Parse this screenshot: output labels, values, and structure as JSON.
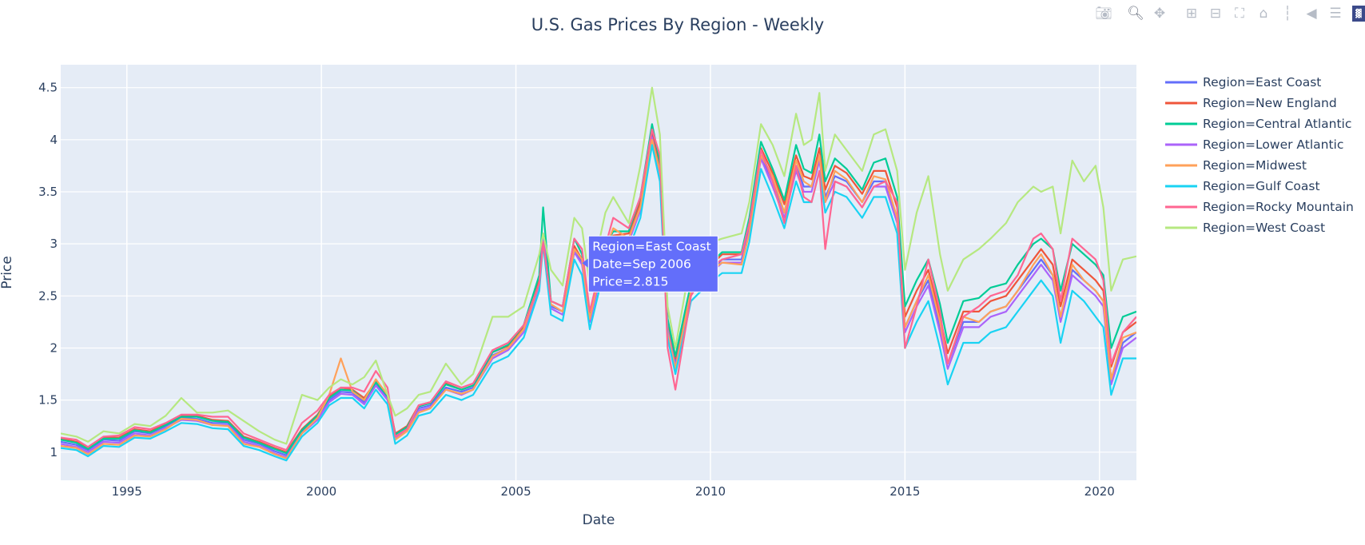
{
  "toolbar": {
    "icons": [
      "camera-icon",
      "zoom-icon",
      "pan-icon",
      "zoom-in-icon",
      "zoom-out-icon",
      "autoscale-icon",
      "home-icon",
      "spike-lines-icon",
      "hover-closest-icon",
      "hover-compare-icon",
      "plotly-logo-icon"
    ]
  },
  "chart_data": {
    "type": "line",
    "title": "U.S. Gas Prices By Region - Weekly",
    "xlabel": "Date",
    "ylabel": "Price",
    "xlim": [
      1993.3,
      2020.95
    ],
    "ylim": [
      0.73,
      4.72
    ],
    "xticks": [
      1995,
      2000,
      2005,
      2010,
      2015,
      2020
    ],
    "yticks": [
      1,
      1.5,
      2,
      2.5,
      3,
      3.5,
      4,
      4.5
    ],
    "yticklabels": [
      "1",
      "1.5",
      "2",
      "2.5",
      "3",
      "3.5",
      "4",
      "4.5"
    ],
    "grid": true,
    "legend_position": "right",
    "x": [
      1993.3,
      1993.7,
      1994.0,
      1994.4,
      1994.8,
      1995.2,
      1995.6,
      1996.0,
      1996.4,
      1996.8,
      1997.2,
      1997.6,
      1998.0,
      1998.4,
      1998.8,
      1999.1,
      1999.5,
      1999.9,
      2000.2,
      2000.5,
      2000.8,
      2001.1,
      2001.4,
      2001.7,
      2001.9,
      2002.2,
      2002.5,
      2002.8,
      2003.2,
      2003.6,
      2003.9,
      2004.4,
      2004.8,
      2005.2,
      2005.6,
      2005.7,
      2005.9,
      2006.2,
      2006.5,
      2006.7,
      2006.9,
      2007.3,
      2007.5,
      2007.9,
      2008.2,
      2008.5,
      2008.7,
      2008.9,
      2009.1,
      2009.5,
      2009.9,
      2010.3,
      2010.8,
      2011.0,
      2011.3,
      2011.6,
      2011.9,
      2012.2,
      2012.4,
      2012.6,
      2012.8,
      2012.95,
      2013.2,
      2013.5,
      2013.9,
      2014.2,
      2014.5,
      2014.8,
      2015.0,
      2015.3,
      2015.6,
      2015.9,
      2016.1,
      2016.5,
      2016.9,
      2017.2,
      2017.6,
      2017.9,
      2018.3,
      2018.5,
      2018.8,
      2019.0,
      2019.3,
      2019.6,
      2019.9,
      2020.1,
      2020.3,
      2020.6,
      2020.95
    ],
    "series": [
      {
        "name": "Region=East Coast",
        "color": "#636efa",
        "values": [
          1.1,
          1.07,
          1.02,
          1.12,
          1.11,
          1.2,
          1.18,
          1.25,
          1.33,
          1.32,
          1.28,
          1.28,
          1.12,
          1.08,
          1.01,
          0.97,
          1.2,
          1.33,
          1.5,
          1.58,
          1.57,
          1.48,
          1.66,
          1.52,
          1.15,
          1.22,
          1.42,
          1.45,
          1.62,
          1.58,
          1.62,
          1.93,
          2.0,
          2.18,
          2.62,
          3.05,
          2.4,
          2.35,
          2.95,
          2.82,
          2.27,
          2.9,
          3.05,
          3.05,
          3.35,
          4.05,
          3.7,
          2.2,
          1.85,
          2.55,
          2.7,
          2.85,
          2.85,
          3.15,
          3.85,
          3.6,
          3.3,
          3.75,
          3.55,
          3.55,
          3.85,
          3.45,
          3.65,
          3.6,
          3.4,
          3.6,
          3.6,
          3.25,
          2.2,
          2.45,
          2.65,
          2.2,
          1.85,
          2.25,
          2.25,
          2.35,
          2.4,
          2.55,
          2.75,
          2.85,
          2.7,
          2.3,
          2.75,
          2.65,
          2.55,
          2.45,
          1.7,
          2.05,
          2.15
        ]
      },
      {
        "name": "Region=New England",
        "color": "#ef553b",
        "values": [
          1.13,
          1.1,
          1.04,
          1.14,
          1.14,
          1.22,
          1.2,
          1.27,
          1.35,
          1.35,
          1.31,
          1.3,
          1.15,
          1.1,
          1.04,
          1.0,
          1.22,
          1.36,
          1.53,
          1.62,
          1.6,
          1.52,
          1.68,
          1.55,
          1.18,
          1.25,
          1.45,
          1.48,
          1.66,
          1.6,
          1.64,
          1.96,
          2.02,
          2.2,
          2.65,
          3.08,
          2.45,
          2.4,
          2.98,
          2.85,
          2.3,
          2.93,
          3.08,
          3.1,
          3.4,
          4.1,
          3.75,
          2.25,
          1.9,
          2.6,
          2.75,
          2.9,
          2.9,
          3.2,
          3.92,
          3.68,
          3.38,
          3.85,
          3.65,
          3.62,
          3.92,
          3.52,
          3.75,
          3.68,
          3.48,
          3.7,
          3.7,
          3.35,
          2.3,
          2.55,
          2.75,
          2.3,
          1.95,
          2.35,
          2.35,
          2.45,
          2.5,
          2.65,
          2.85,
          2.95,
          2.8,
          2.4,
          2.85,
          2.75,
          2.65,
          2.55,
          1.82,
          2.15,
          2.25
        ]
      },
      {
        "name": "Region=Central Atlantic",
        "color": "#00cc96",
        "values": [
          1.12,
          1.09,
          1.03,
          1.13,
          1.13,
          1.21,
          1.19,
          1.26,
          1.34,
          1.34,
          1.3,
          1.29,
          1.14,
          1.09,
          1.03,
          0.99,
          1.21,
          1.35,
          1.52,
          1.6,
          1.59,
          1.5,
          1.67,
          1.54,
          1.17,
          1.24,
          1.44,
          1.47,
          1.65,
          1.6,
          1.64,
          1.96,
          2.03,
          2.22,
          2.7,
          3.35,
          2.45,
          2.4,
          3.05,
          2.9,
          2.32,
          2.98,
          3.12,
          3.12,
          3.45,
          4.15,
          3.78,
          2.28,
          1.92,
          2.62,
          2.78,
          2.92,
          2.92,
          3.25,
          3.98,
          3.72,
          3.42,
          3.95,
          3.72,
          3.68,
          4.05,
          3.6,
          3.82,
          3.72,
          3.52,
          3.78,
          3.82,
          3.45,
          2.4,
          2.65,
          2.85,
          2.42,
          2.05,
          2.45,
          2.48,
          2.58,
          2.62,
          2.8,
          3.0,
          3.05,
          2.95,
          2.55,
          3.0,
          2.9,
          2.8,
          2.7,
          2.0,
          2.3,
          2.35
        ]
      },
      {
        "name": "Region=Lower Atlantic",
        "color": "#ab63fa",
        "values": [
          1.08,
          1.05,
          1.0,
          1.1,
          1.09,
          1.18,
          1.16,
          1.23,
          1.31,
          1.3,
          1.26,
          1.26,
          1.1,
          1.06,
          0.99,
          0.95,
          1.18,
          1.31,
          1.48,
          1.56,
          1.55,
          1.46,
          1.64,
          1.5,
          1.13,
          1.2,
          1.4,
          1.43,
          1.6,
          1.55,
          1.6,
          1.9,
          1.98,
          2.15,
          2.6,
          3.1,
          2.38,
          2.32,
          2.92,
          2.8,
          2.25,
          2.88,
          3.02,
          3.02,
          3.32,
          4.02,
          3.68,
          2.18,
          1.82,
          2.52,
          2.68,
          2.82,
          2.82,
          3.12,
          3.82,
          3.55,
          3.25,
          3.7,
          3.5,
          3.5,
          3.8,
          3.4,
          3.6,
          3.55,
          3.35,
          3.55,
          3.55,
          3.2,
          2.15,
          2.4,
          2.6,
          2.15,
          1.8,
          2.2,
          2.2,
          2.3,
          2.35,
          2.5,
          2.7,
          2.8,
          2.65,
          2.25,
          2.7,
          2.6,
          2.5,
          2.4,
          1.65,
          2.0,
          2.1
        ]
      },
      {
        "name": "Region=Midwest",
        "color": "#ffa15a",
        "values": [
          1.06,
          1.04,
          0.98,
          1.08,
          1.07,
          1.16,
          1.15,
          1.22,
          1.32,
          1.31,
          1.26,
          1.25,
          1.08,
          1.05,
          0.98,
          0.94,
          1.18,
          1.33,
          1.55,
          1.9,
          1.58,
          1.5,
          1.7,
          1.55,
          1.12,
          1.2,
          1.38,
          1.42,
          1.6,
          1.56,
          1.6,
          1.92,
          2.0,
          2.18,
          2.62,
          3.0,
          2.42,
          2.35,
          2.95,
          2.85,
          2.28,
          2.95,
          3.15,
          3.05,
          3.35,
          4.0,
          3.7,
          2.15,
          1.8,
          2.55,
          2.72,
          2.82,
          2.8,
          3.1,
          3.85,
          3.65,
          3.3,
          3.8,
          3.6,
          3.55,
          3.85,
          3.4,
          3.7,
          3.62,
          3.4,
          3.65,
          3.62,
          3.25,
          2.2,
          2.45,
          2.7,
          2.25,
          1.85,
          2.3,
          2.25,
          2.35,
          2.4,
          2.55,
          2.8,
          2.9,
          2.7,
          2.3,
          2.8,
          2.65,
          2.55,
          2.45,
          1.7,
          2.1,
          2.15
        ]
      },
      {
        "name": "Region=Gulf Coast",
        "color": "#19d3f3",
        "values": [
          1.04,
          1.02,
          0.96,
          1.06,
          1.05,
          1.14,
          1.13,
          1.2,
          1.28,
          1.27,
          1.23,
          1.22,
          1.06,
          1.02,
          0.96,
          0.92,
          1.15,
          1.28,
          1.45,
          1.52,
          1.52,
          1.42,
          1.6,
          1.46,
          1.08,
          1.16,
          1.35,
          1.38,
          1.55,
          1.5,
          1.55,
          1.85,
          1.92,
          2.1,
          2.55,
          3.0,
          2.32,
          2.26,
          2.85,
          2.7,
          2.18,
          2.8,
          2.95,
          2.95,
          3.25,
          3.95,
          3.6,
          2.1,
          1.75,
          2.45,
          2.6,
          2.72,
          2.72,
          3.02,
          3.72,
          3.45,
          3.15,
          3.6,
          3.4,
          3.4,
          3.7,
          3.3,
          3.5,
          3.45,
          3.25,
          3.45,
          3.45,
          3.1,
          2.0,
          2.25,
          2.45,
          2.0,
          1.65,
          2.05,
          2.05,
          2.15,
          2.2,
          2.35,
          2.55,
          2.65,
          2.5,
          2.05,
          2.55,
          2.45,
          2.3,
          2.2,
          1.55,
          1.9,
          1.9
        ]
      },
      {
        "name": "Region=Rocky Mountain",
        "color": "#ff6692",
        "values": [
          1.14,
          1.12,
          1.05,
          1.15,
          1.16,
          1.24,
          1.22,
          1.28,
          1.36,
          1.36,
          1.34,
          1.34,
          1.18,
          1.12,
          1.06,
          1.02,
          1.28,
          1.4,
          1.55,
          1.62,
          1.62,
          1.58,
          1.78,
          1.62,
          1.15,
          1.22,
          1.45,
          1.48,
          1.68,
          1.62,
          1.66,
          1.98,
          2.05,
          2.22,
          2.62,
          3.02,
          2.45,
          2.4,
          3.05,
          2.95,
          2.35,
          2.98,
          3.25,
          3.15,
          3.45,
          4.1,
          3.85,
          2.0,
          1.6,
          2.5,
          2.75,
          2.85,
          2.9,
          3.2,
          3.9,
          3.6,
          3.2,
          3.75,
          3.45,
          3.4,
          3.7,
          2.95,
          3.6,
          3.55,
          3.35,
          3.55,
          3.6,
          3.4,
          2.0,
          2.4,
          2.85,
          2.35,
          1.85,
          2.3,
          2.4,
          2.5,
          2.55,
          2.7,
          3.05,
          3.1,
          2.95,
          2.45,
          3.05,
          2.95,
          2.85,
          2.65,
          1.85,
          2.15,
          2.3
        ]
      },
      {
        "name": "Region=West Coast",
        "color": "#b6e880",
        "values": [
          1.18,
          1.15,
          1.1,
          1.2,
          1.18,
          1.27,
          1.25,
          1.35,
          1.52,
          1.38,
          1.38,
          1.4,
          1.3,
          1.2,
          1.12,
          1.08,
          1.55,
          1.5,
          1.62,
          1.7,
          1.65,
          1.72,
          1.88,
          1.55,
          1.35,
          1.42,
          1.55,
          1.58,
          1.85,
          1.65,
          1.75,
          2.3,
          2.3,
          2.4,
          2.9,
          3.1,
          2.75,
          2.6,
          3.25,
          3.15,
          2.6,
          3.3,
          3.45,
          3.2,
          3.75,
          4.5,
          4.05,
          2.4,
          2.0,
          2.85,
          3.0,
          3.05,
          3.1,
          3.4,
          4.15,
          3.95,
          3.65,
          4.25,
          3.95,
          4.0,
          4.45,
          3.7,
          4.05,
          3.9,
          3.7,
          4.05,
          4.1,
          3.7,
          2.75,
          3.3,
          3.65,
          2.9,
          2.55,
          2.85,
          2.95,
          3.05,
          3.2,
          3.4,
          3.55,
          3.5,
          3.55,
          3.1,
          3.8,
          3.6,
          3.75,
          3.35,
          2.55,
          2.85,
          2.88
        ]
      }
    ],
    "tooltip": {
      "series_index": 0,
      "x": 2006.7,
      "y": 2.815,
      "lines": [
        "Region=East Coast",
        "Date=Sep 2006",
        "Price=2.815"
      ]
    }
  }
}
